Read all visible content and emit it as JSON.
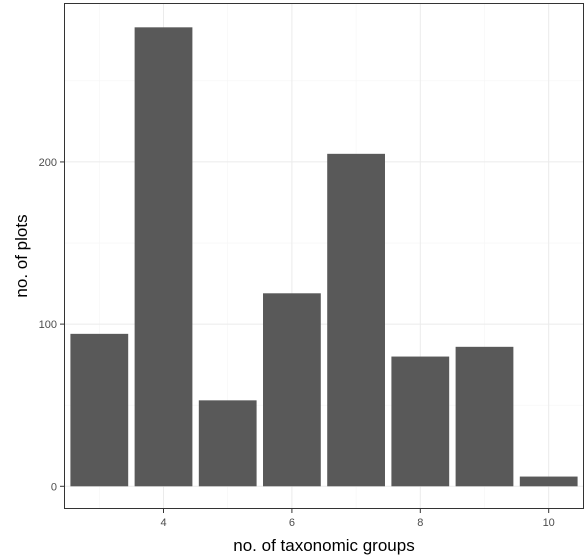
{
  "chart_data": {
    "type": "bar",
    "title": "",
    "xlabel": "no. of taxonomic groups",
    "ylabel": "no. of plots",
    "x": [
      3,
      4,
      5,
      6,
      7,
      8,
      9,
      10
    ],
    "values": [
      94,
      283,
      53,
      119,
      205,
      80,
      86,
      6
    ],
    "xlim": [
      2.45,
      10.55
    ],
    "ylim": [
      -14,
      298
    ],
    "xticks": [
      4,
      6,
      8,
      10
    ],
    "yticks": [
      0,
      100,
      200
    ],
    "grid": true,
    "legend": "none",
    "colors": {
      "bar": "#595959",
      "panel_border": "#333333",
      "grid_major": "#ebebeb",
      "grid_minor": "#f5f5f5",
      "axis_text": "#4d4d4d",
      "axis_title": "#000000"
    }
  }
}
